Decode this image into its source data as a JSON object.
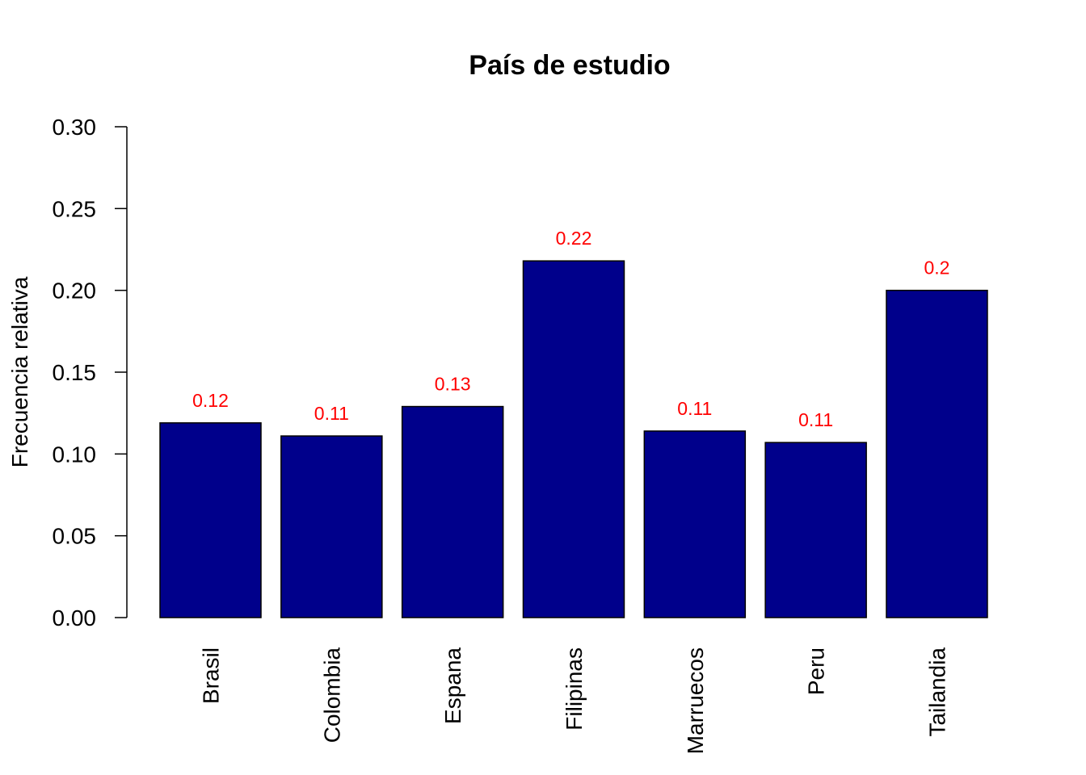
{
  "chart_data": {
    "type": "bar",
    "title": "País de estudio",
    "xlabel": "",
    "ylabel": "Frecuencia relativa",
    "ylim": [
      0,
      0.3
    ],
    "yticks": [
      "0.00",
      "0.05",
      "0.10",
      "0.15",
      "0.20",
      "0.25",
      "0.30"
    ],
    "categories": [
      "Brasil",
      "Colombia",
      "Espana",
      "Filipinas",
      "Marruecos",
      "Peru",
      "Tailandia"
    ],
    "values": [
      0.119,
      0.111,
      0.129,
      0.218,
      0.114,
      0.107,
      0.2
    ],
    "data_labels": [
      "0.12",
      "0.11",
      "0.13",
      "0.22",
      "0.11",
      "0.11",
      "0.2"
    ],
    "grid": false,
    "legend": "none",
    "colors": {
      "bar_fill": "#00008B",
      "bar_stroke": "#000000",
      "data_label": "#FF0000",
      "axis": "#000000"
    }
  }
}
